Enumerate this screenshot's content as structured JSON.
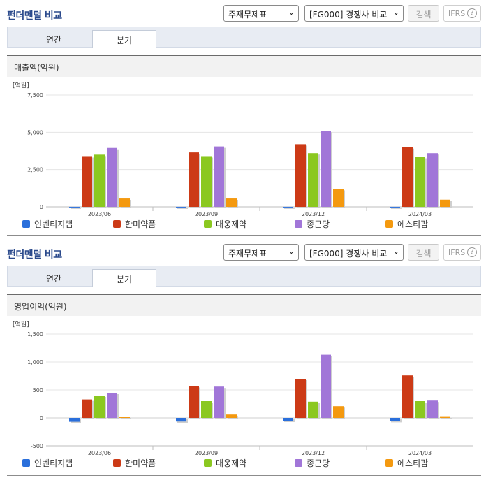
{
  "header": {
    "title": "펀더멘털 비교",
    "select1": "주재무제표",
    "select2": "[FG000] 경쟁사 비교",
    "search_label": "검색",
    "ifrs_label": "IFRS",
    "help_glyph": "?"
  },
  "tabs": [
    "연간",
    "분기"
  ],
  "colors": {
    "인벤티지랩": "#2a6fdb",
    "한미약품": "#cc3a16",
    "대웅제약": "#8bc820",
    "종근당": "#a176d8",
    "에스티팜": "#f4990f"
  },
  "chart_data": [
    {
      "type": "bar",
      "title": "매출액(억원)",
      "unit_label": "[억원]",
      "categories": [
        "2023/06",
        "2023/09",
        "2023/12",
        "2024/03"
      ],
      "ylim": [
        0,
        7500
      ],
      "yticks": [
        "7,500",
        "5,000",
        "2,500",
        "0"
      ],
      "ytick_values": [
        7500,
        5000,
        2500,
        0
      ],
      "grid": true,
      "legend_position": "bottom",
      "series": [
        {
          "name": "인벤티지랩",
          "color": "#2a6fdb",
          "values": [
            3,
            3,
            3,
            3
          ]
        },
        {
          "name": "한미약품",
          "color": "#cc3a16",
          "values": [
            3400,
            3650,
            4200,
            4000
          ]
        },
        {
          "name": "대웅제약",
          "color": "#8bc820",
          "values": [
            3500,
            3400,
            3600,
            3350
          ]
        },
        {
          "name": "종근당",
          "color": "#a176d8",
          "values": [
            3950,
            4050,
            5100,
            3600
          ]
        },
        {
          "name": "에스티팜",
          "color": "#f4990f",
          "values": [
            560,
            560,
            1200,
            480
          ]
        }
      ]
    },
    {
      "type": "bar",
      "title": "영업이익(억원)",
      "unit_label": "[억원]",
      "categories": [
        "2023/06",
        "2023/09",
        "2023/12",
        "2024/03"
      ],
      "ylim": [
        -500,
        1500
      ],
      "yticks": [
        "1,500",
        "1,000",
        "500",
        "0",
        "-500"
      ],
      "ytick_values": [
        1500,
        1000,
        500,
        0,
        -500
      ],
      "grid": true,
      "legend_position": "bottom",
      "series": [
        {
          "name": "인벤티지랩",
          "color": "#2a6fdb",
          "values": [
            -70,
            -65,
            -50,
            -55
          ]
        },
        {
          "name": "한미약품",
          "color": "#cc3a16",
          "values": [
            330,
            570,
            700,
            760
          ]
        },
        {
          "name": "대웅제약",
          "color": "#8bc820",
          "values": [
            400,
            300,
            290,
            300
          ]
        },
        {
          "name": "종근당",
          "color": "#a176d8",
          "values": [
            450,
            560,
            1130,
            310
          ]
        },
        {
          "name": "에스티팜",
          "color": "#f4990f",
          "values": [
            20,
            60,
            210,
            30
          ]
        }
      ]
    }
  ]
}
